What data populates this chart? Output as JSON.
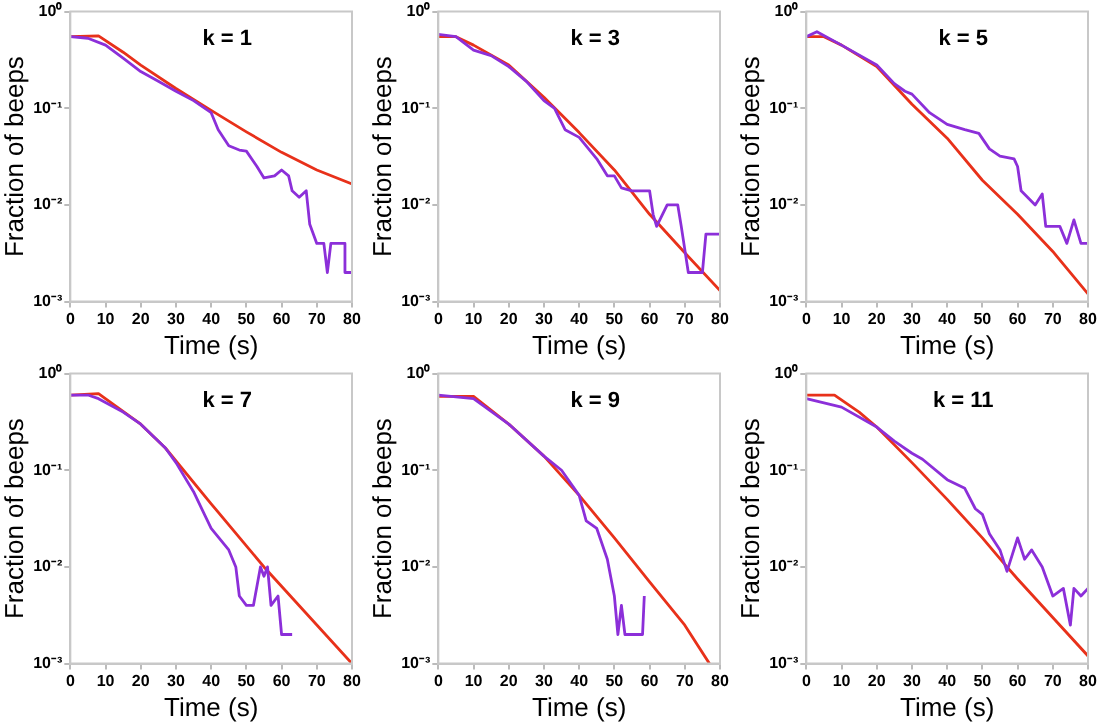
{
  "chart_data": [
    {
      "type": "line",
      "title": "k = 1",
      "xlabel": "Time (s)",
      "ylabel": "Fraction of beeps",
      "log": "y",
      "grid": false,
      "legend": false,
      "xlim": [
        0,
        80
      ],
      "xticks": [
        0,
        10,
        20,
        30,
        40,
        50,
        60,
        70,
        80
      ],
      "ylim": [
        0.001,
        1
      ],
      "yticks": [
        {
          "value": 0.001,
          "label": "10⁻³"
        },
        {
          "value": 0.01,
          "label": "10⁻²"
        },
        {
          "value": 0.1,
          "label": "10⁻¹"
        },
        {
          "value": 1,
          "label": "10⁰"
        }
      ],
      "series": [
        {
          "color": "#8c2fd9",
          "x": [
            0,
            5,
            10,
            15,
            20,
            25,
            30,
            35,
            40,
            42,
            45,
            48,
            50,
            53,
            55,
            58,
            60,
            62,
            63,
            65,
            67,
            68,
            70,
            72,
            73,
            74,
            78,
            78,
            80
          ],
          "values": [
            0.55,
            0.53,
            0.45,
            0.33,
            0.24,
            0.19,
            0.15,
            0.12,
            0.09,
            0.06,
            0.041,
            0.037,
            0.036,
            0.025,
            0.019,
            0.02,
            0.023,
            0.02,
            0.014,
            0.012,
            0.014,
            0.0063,
            0.004,
            0.004,
            0.002,
            0.004,
            0.004,
            0.002,
            0.002
          ]
        },
        {
          "color": "#e8311a",
          "x": [
            0,
            8,
            15,
            20,
            30,
            40,
            50,
            60,
            70,
            80
          ],
          "values": [
            0.55,
            0.56,
            0.38,
            0.28,
            0.16,
            0.095,
            0.057,
            0.035,
            0.023,
            0.0165
          ]
        }
      ]
    },
    {
      "type": "line",
      "title": "k = 3",
      "xlabel": "Time (s)",
      "ylabel": "Fraction of beeps",
      "log": "y",
      "grid": false,
      "legend": false,
      "xlim": [
        0,
        80
      ],
      "xticks": [
        0,
        10,
        20,
        30,
        40,
        50,
        60,
        70,
        80
      ],
      "ylim": [
        0.001,
        1
      ],
      "yticks": [
        {
          "value": 0.001,
          "label": "10⁻³"
        },
        {
          "value": 0.01,
          "label": "10⁻²"
        },
        {
          "value": 0.1,
          "label": "10⁻¹"
        },
        {
          "value": 1,
          "label": "10⁰"
        }
      ],
      "series": [
        {
          "color": "#8c2fd9",
          "x": [
            0,
            5,
            10,
            15,
            20,
            25,
            30,
            33,
            36,
            40,
            45,
            48,
            50,
            52,
            55,
            60,
            61,
            62,
            65,
            68,
            69,
            71,
            75,
            76,
            80
          ],
          "values": [
            0.58,
            0.55,
            0.4,
            0.35,
            0.27,
            0.19,
            0.12,
            0.1,
            0.06,
            0.05,
            0.03,
            0.02,
            0.02,
            0.015,
            0.014,
            0.014,
            0.008,
            0.006,
            0.01,
            0.01,
            0.006,
            0.002,
            0.002,
            0.005,
            0.005
          ]
        },
        {
          "color": "#e8311a",
          "x": [
            0,
            5,
            10,
            20,
            30,
            40,
            50,
            60,
            70,
            80
          ],
          "values": [
            0.55,
            0.55,
            0.45,
            0.28,
            0.13,
            0.056,
            0.023,
            0.008,
            0.0032,
            0.0013
          ]
        }
      ]
    },
    {
      "type": "line",
      "title": "k = 5",
      "xlabel": "Time (s)",
      "ylabel": "Fraction of beeps",
      "log": "y",
      "grid": false,
      "legend": false,
      "xlim": [
        0,
        80
      ],
      "xticks": [
        0,
        10,
        20,
        30,
        40,
        50,
        60,
        70,
        80
      ],
      "ylim": [
        0.001,
        1
      ],
      "yticks": [
        {
          "value": 0.001,
          "label": "10⁻³"
        },
        {
          "value": 0.01,
          "label": "10⁻²"
        },
        {
          "value": 0.1,
          "label": "10⁻¹"
        },
        {
          "value": 1,
          "label": "10⁰"
        }
      ],
      "series": [
        {
          "color": "#8c2fd9",
          "x": [
            0,
            3,
            10,
            20,
            25,
            28,
            30,
            35,
            40,
            45,
            49,
            52,
            55,
            59,
            60,
            61,
            65,
            67,
            68,
            72,
            74,
            76,
            78,
            80
          ],
          "values": [
            0.55,
            0.62,
            0.45,
            0.28,
            0.18,
            0.15,
            0.14,
            0.09,
            0.068,
            0.06,
            0.055,
            0.038,
            0.032,
            0.03,
            0.025,
            0.014,
            0.01,
            0.013,
            0.006,
            0.006,
            0.004,
            0.007,
            0.004,
            0.004
          ]
        },
        {
          "color": "#e8311a",
          "x": [
            0,
            5,
            10,
            20,
            30,
            40,
            50,
            60,
            70,
            80
          ],
          "values": [
            0.55,
            0.55,
            0.45,
            0.27,
            0.11,
            0.049,
            0.018,
            0.008,
            0.0033,
            0.0012
          ]
        }
      ]
    },
    {
      "type": "line",
      "title": "k = 7",
      "xlabel": "Time (s)",
      "ylabel": "Fraction of beeps",
      "log": "y",
      "grid": false,
      "legend": false,
      "xlim": [
        0,
        80
      ],
      "xticks": [
        0,
        10,
        20,
        30,
        40,
        50,
        60,
        70,
        80
      ],
      "ylim": [
        0.001,
        1
      ],
      "yticks": [
        {
          "value": 0.001,
          "label": "10⁻³"
        },
        {
          "value": 0.01,
          "label": "10⁻²"
        },
        {
          "value": 0.1,
          "label": "10⁻¹"
        },
        {
          "value": 1,
          "label": "10⁰"
        }
      ],
      "series": [
        {
          "color": "#8c2fd9",
          "x": [
            0,
            5,
            8,
            15,
            20,
            27,
            30,
            35,
            40,
            45,
            47,
            48,
            50,
            52,
            54,
            55,
            56,
            57,
            59,
            60,
            63
          ],
          "values": [
            0.6,
            0.6,
            0.55,
            0.4,
            0.3,
            0.17,
            0.12,
            0.06,
            0.025,
            0.015,
            0.01,
            0.005,
            0.004,
            0.004,
            0.01,
            0.008,
            0.01,
            0.004,
            0.005,
            0.002,
            0.002
          ]
        },
        {
          "color": "#e8311a",
          "x": [
            0,
            8,
            20,
            27,
            40,
            55,
            80
          ],
          "values": [
            0.6,
            0.62,
            0.3,
            0.17,
            0.045,
            0.01,
            0.001
          ]
        }
      ]
    },
    {
      "type": "line",
      "title": "k = 9",
      "xlabel": "Time (s)",
      "ylabel": "Fraction of beeps",
      "log": "y",
      "grid": false,
      "legend": false,
      "xlim": [
        0,
        80
      ],
      "xticks": [
        0,
        10,
        20,
        30,
        40,
        50,
        60,
        70,
        80
      ],
      "ylim": [
        0.001,
        1
      ],
      "yticks": [
        {
          "value": 0.001,
          "label": "10⁻³"
        },
        {
          "value": 0.01,
          "label": "10⁻²"
        },
        {
          "value": 0.1,
          "label": "10⁻¹"
        },
        {
          "value": 1,
          "label": "10⁰"
        }
      ],
      "series": [
        {
          "color": "#8c2fd9",
          "x": [
            0,
            10,
            20,
            30,
            35,
            40,
            42,
            45,
            48,
            50,
            51,
            52,
            53,
            55,
            58,
            58.5
          ],
          "values": [
            0.6,
            0.55,
            0.3,
            0.14,
            0.1,
            0.055,
            0.03,
            0.025,
            0.012,
            0.005,
            0.002,
            0.004,
            0.002,
            0.002,
            0.002,
            0.005
          ]
        },
        {
          "color": "#e8311a",
          "x": [
            0,
            10,
            20,
            30,
            40,
            50,
            60,
            70,
            77
          ],
          "values": [
            0.58,
            0.58,
            0.3,
            0.14,
            0.055,
            0.02,
            0.007,
            0.0025,
            0.001
          ]
        }
      ]
    },
    {
      "type": "line",
      "title": "k = 11",
      "xlabel": "Time (s)",
      "ylabel": "Fraction of beeps",
      "log": "y",
      "grid": false,
      "legend": false,
      "xlim": [
        0,
        80
      ],
      "xticks": [
        0,
        10,
        20,
        30,
        40,
        50,
        60,
        70,
        80
      ],
      "ylim": [
        0.001,
        1
      ],
      "yticks": [
        {
          "value": 0.001,
          "label": "10⁻³"
        },
        {
          "value": 0.01,
          "label": "10⁻²"
        },
        {
          "value": 0.1,
          "label": "10⁻¹"
        },
        {
          "value": 1,
          "label": "10⁰"
        }
      ],
      "series": [
        {
          "color": "#8c2fd9",
          "x": [
            0,
            10,
            20,
            25,
            30,
            33,
            40,
            45,
            48,
            50,
            52,
            55,
            57,
            60,
            62,
            64,
            67,
            70,
            73,
            75,
            76,
            78,
            80
          ],
          "values": [
            0.55,
            0.45,
            0.28,
            0.2,
            0.15,
            0.13,
            0.08,
            0.065,
            0.04,
            0.035,
            0.022,
            0.015,
            0.009,
            0.02,
            0.012,
            0.015,
            0.01,
            0.005,
            0.006,
            0.0025,
            0.006,
            0.005,
            0.006
          ]
        },
        {
          "color": "#e8311a",
          "x": [
            0,
            8,
            15,
            20,
            30,
            40,
            50,
            56,
            60,
            70,
            80
          ],
          "values": [
            0.6,
            0.6,
            0.4,
            0.28,
            0.12,
            0.05,
            0.02,
            0.011,
            0.0075,
            0.003,
            0.0012
          ]
        }
      ]
    }
  ]
}
